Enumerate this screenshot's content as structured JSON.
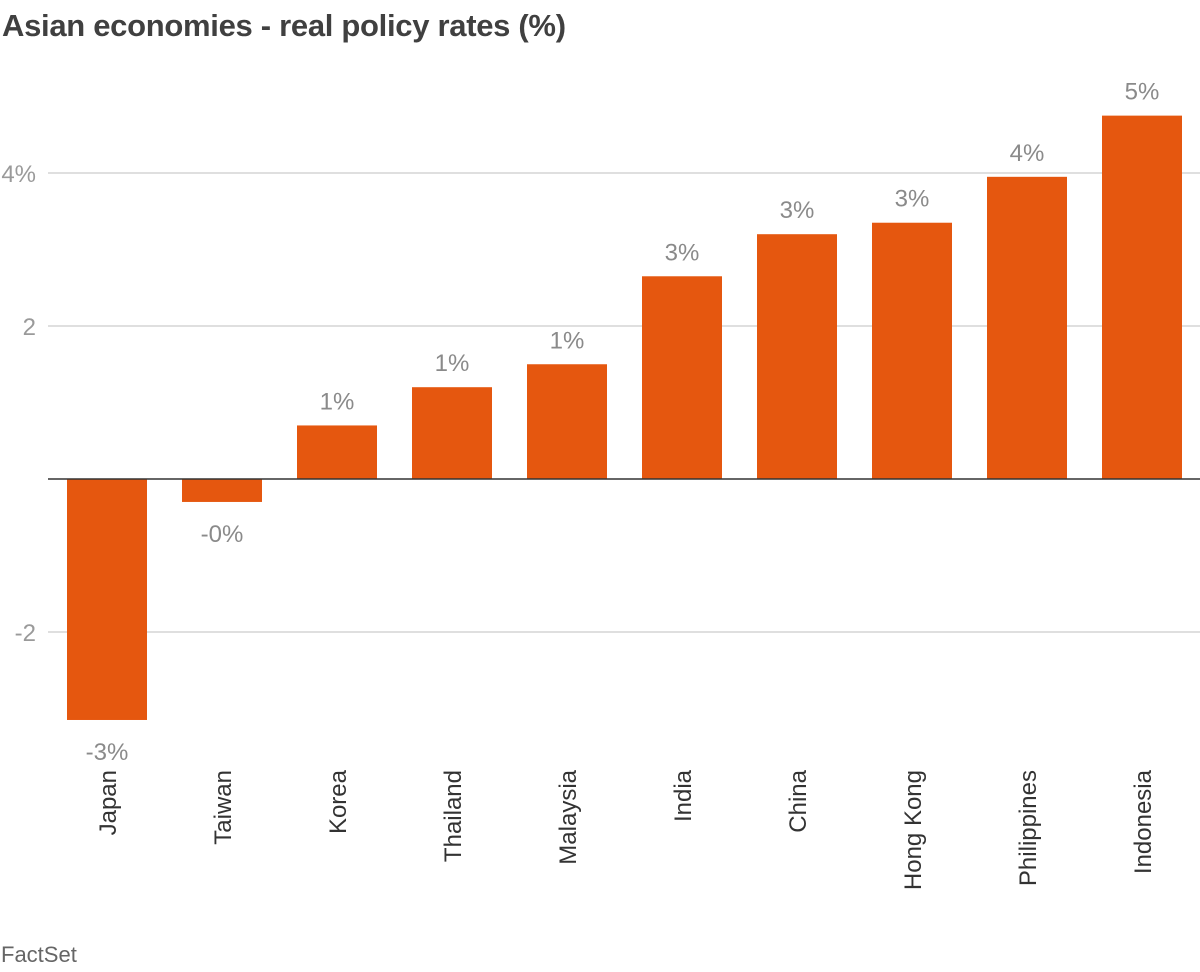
{
  "chart_data": {
    "type": "bar",
    "title": "Asian economies - real policy rates (%)",
    "source": "FactSet",
    "categories": [
      "Japan",
      "Taiwan",
      "Korea",
      "Thailand",
      "Malaysia",
      "India",
      "China",
      "Hong Kong",
      "Philippines",
      "Indonesia"
    ],
    "values": [
      -3.15,
      -0.3,
      0.7,
      1.2,
      1.5,
      2.65,
      3.2,
      3.35,
      3.95,
      4.75
    ],
    "data_labels": [
      "-3%",
      "-0%",
      "1%",
      "1%",
      "1%",
      "3%",
      "3%",
      "3%",
      "4%",
      "5%"
    ],
    "y_ticks": [
      {
        "value": 4,
        "label": "4%"
      },
      {
        "value": 2,
        "label": "2"
      },
      {
        "value": -2,
        "label": "-2"
      }
    ],
    "ylim": [
      -3.15,
      5.3
    ],
    "grid": true,
    "legend": "none",
    "bar_color": "#e5570f"
  }
}
